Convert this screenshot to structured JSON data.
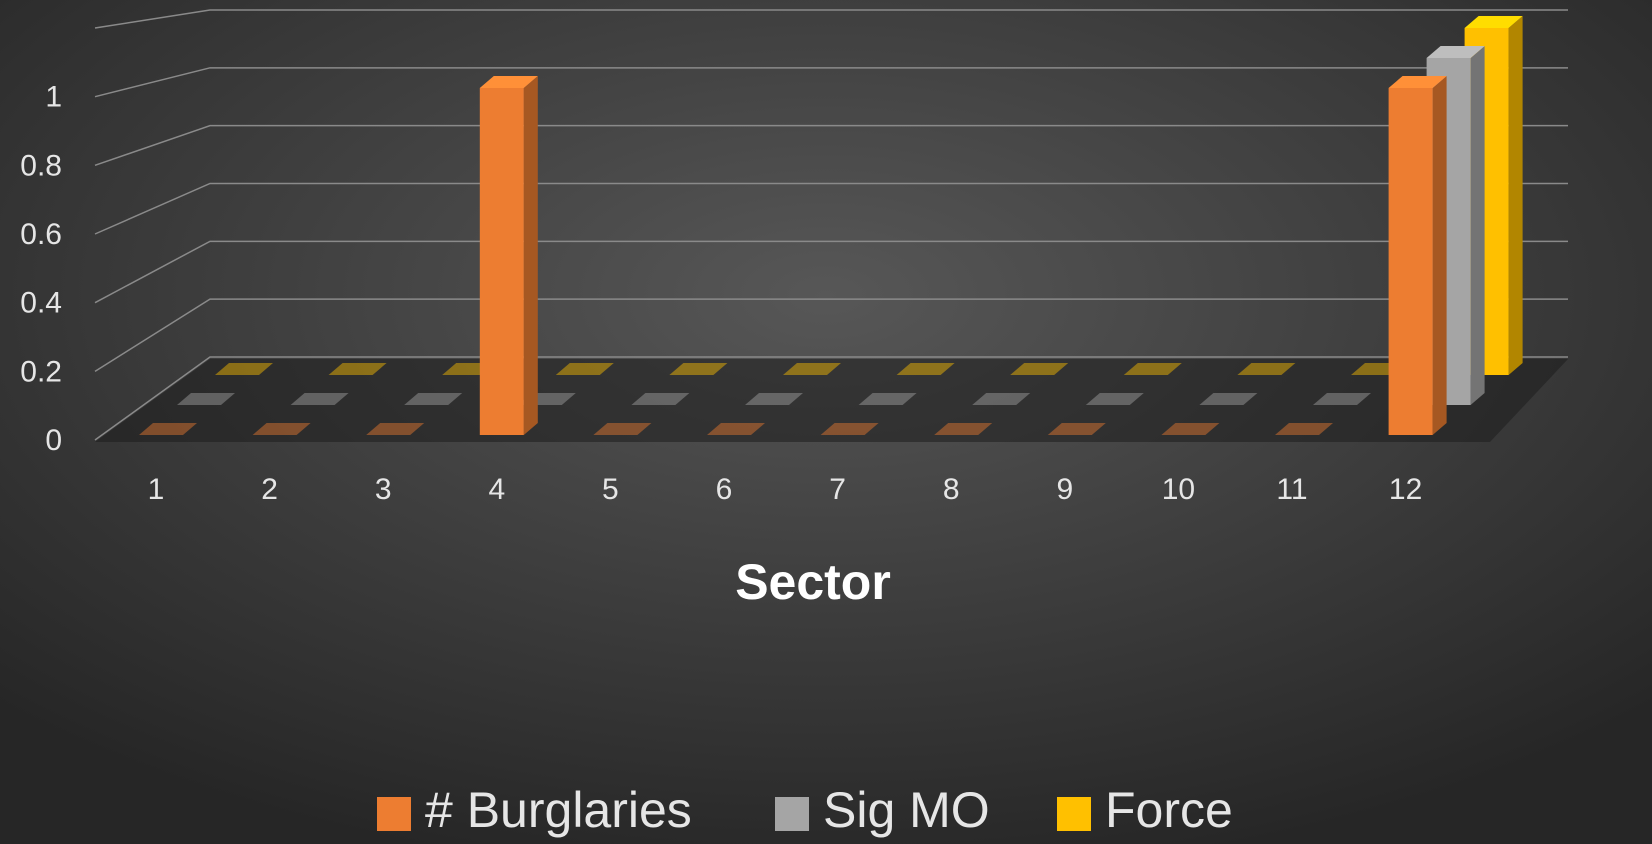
{
  "chart_data": {
    "type": "bar3d",
    "x_label": "Sector",
    "categories": [
      "1",
      "2",
      "3",
      "4",
      "5",
      "6",
      "7",
      "8",
      "9",
      "10",
      "11",
      "12"
    ],
    "series": [
      {
        "name": "# Burglaries",
        "color": "#ed7d31",
        "values": [
          0,
          0,
          0,
          1,
          0,
          0,
          0,
          0,
          0,
          0,
          0,
          1
        ]
      },
      {
        "name": "Sig MO",
        "color": "#a5a5a5",
        "values": [
          0,
          0,
          0,
          0,
          0,
          0,
          0,
          0,
          0,
          0,
          0,
          1
        ]
      },
      {
        "name": "Force",
        "color": "#ffc000",
        "values": [
          0,
          0,
          0,
          0,
          0,
          0,
          0,
          0,
          0,
          0,
          0,
          1
        ]
      }
    ],
    "ylim": [
      0,
      1.2
    ],
    "yticks": [
      0,
      0.2,
      0.4,
      0.6,
      0.8,
      1
    ],
    "grid": true,
    "legend": "bottom"
  }
}
